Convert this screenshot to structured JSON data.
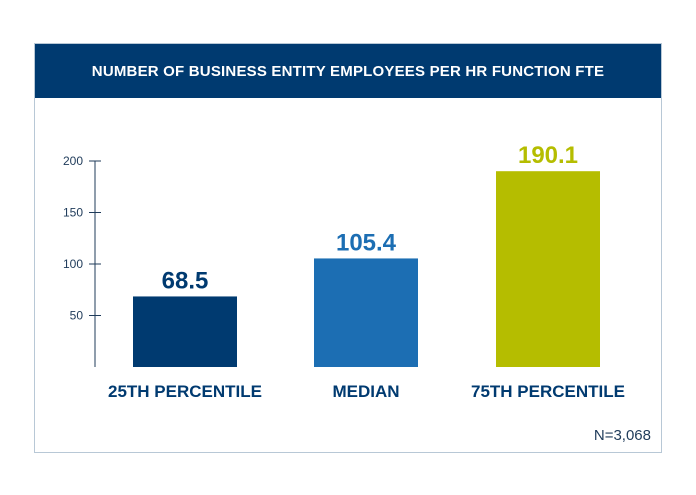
{
  "chart_data": {
    "type": "bar",
    "title": "NUMBER OF BUSINESS ENTITY EMPLOYEES PER HR FUNCTION FTE",
    "categories": [
      "25TH PERCENTILE",
      "MEDIAN",
      "75TH PERCENTILE"
    ],
    "values": [
      68.5,
      105.4,
      190.1
    ],
    "value_labels": [
      "68.5",
      "105.4",
      "190.1"
    ],
    "colors": [
      "#003a70",
      "#1c6eb3",
      "#b5bd00"
    ],
    "yticks": [
      50,
      100,
      150,
      200
    ],
    "ylim": [
      0,
      200
    ],
    "xlabel": "",
    "ylabel": "",
    "grid": false,
    "note": "N=3,068"
  }
}
